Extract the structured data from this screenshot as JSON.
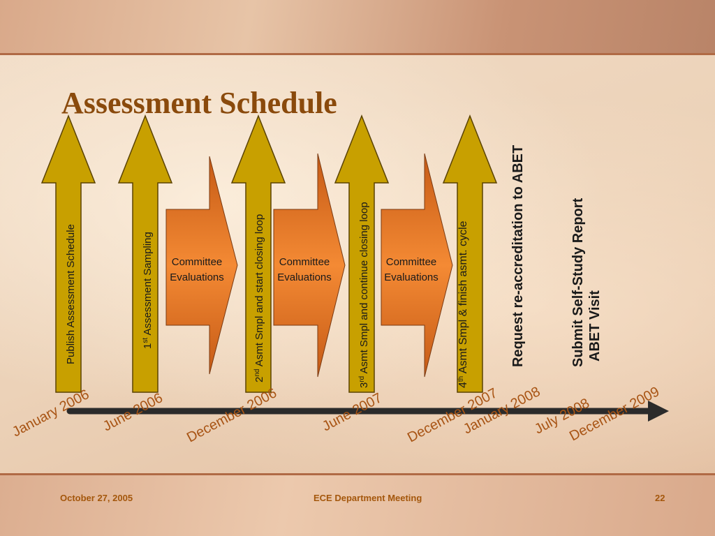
{
  "title": "Assessment Schedule",
  "milestones": [
    {
      "label": "Publish Assessment Schedule"
    },
    {
      "pre": "1",
      "sup": "st",
      "post": " Assessment Sampling"
    },
    {
      "pre": "2",
      "sup": "nd",
      "post": " Asmt Smpl and start closing loop"
    },
    {
      "pre": "3",
      "sup": "rd",
      "post": " Asmt Smpl and continue closing loop"
    },
    {
      "pre": "4",
      "sup": "th",
      "post": " Asmt Smpl & finish asmt. cycle"
    }
  ],
  "evaluations": [
    {
      "line1": "Committee",
      "line2": "Evaluations"
    },
    {
      "line1": "Committee",
      "line2": "Evaluations"
    },
    {
      "line1": "Committee",
      "line2": "Evaluations"
    }
  ],
  "events": {
    "request": "Request re-accreditation  to ABET",
    "submit": "Submit Self-Study Report",
    "visit": "ABET Visit"
  },
  "timeline_dates": [
    "January 2006",
    "June 2006",
    "December 2006",
    "June 2007",
    "December 2007",
    "January 2008",
    "July 2008",
    "December 2009"
  ],
  "footer": {
    "date": "October 27, 2005",
    "meeting": "ECE Department Meeting",
    "page": "22"
  },
  "colors": {
    "gold_arrow": "#c8a000",
    "gold_outline": "#5a4200",
    "orange_chevron": "#ef7f2a",
    "timeline": "#2b2b2b",
    "title": "#8a4a0c",
    "footer_text": "#a4570c"
  }
}
